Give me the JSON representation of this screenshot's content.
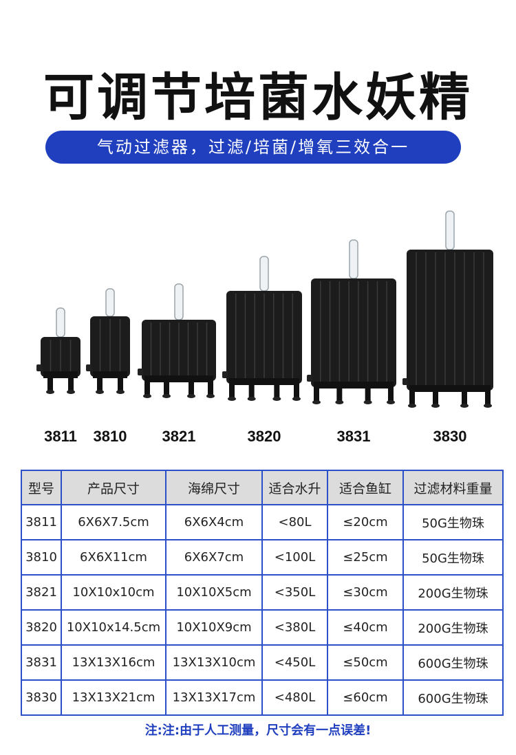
{
  "title": "可调节培菌水妖精",
  "subtitle": "气动过滤器，过滤/培菌/增氧三效合一",
  "colors": {
    "accent": "#1f3fbf",
    "table_border": "#2b4fc8",
    "header_bg": "#dcdcdc",
    "product": "#1c1c1c"
  },
  "products": [
    {
      "model": "3811"
    },
    {
      "model": "3810"
    },
    {
      "model": "3821"
    },
    {
      "model": "3820"
    },
    {
      "model": "3831"
    },
    {
      "model": "3830"
    }
  ],
  "table": {
    "headers": [
      "型号",
      "产品尺寸",
      "海绵尺寸",
      "适合水升",
      "适合鱼缸",
      "过滤材料重量"
    ],
    "rows": [
      [
        "3811",
        "6X6X7.5cm",
        "6X6X4cm",
        "<80L",
        "≤20cm",
        "50G生物珠"
      ],
      [
        "3810",
        "6X6X11cm",
        "6X6X7cm",
        "<100L",
        "≤25cm",
        "50G生物珠"
      ],
      [
        "3821",
        "10X10x10cm",
        "10X10X5cm",
        "<350L",
        "≤30cm",
        "200G生物珠"
      ],
      [
        "3820",
        "10X10x14.5cm",
        "10X10X9cm",
        "<380L",
        "≤40cm",
        "200G生物珠"
      ],
      [
        "3831",
        "13X13X16cm",
        "13X13X10cm",
        "<450L",
        "≤50cm",
        "600G生物珠"
      ],
      [
        "3830",
        "13X13X21cm",
        "13X13X17cm",
        "<480L",
        "≤60cm",
        "600G生物珠"
      ]
    ]
  },
  "note": "注:注:由于人工测量，尺寸会有一点误差!"
}
